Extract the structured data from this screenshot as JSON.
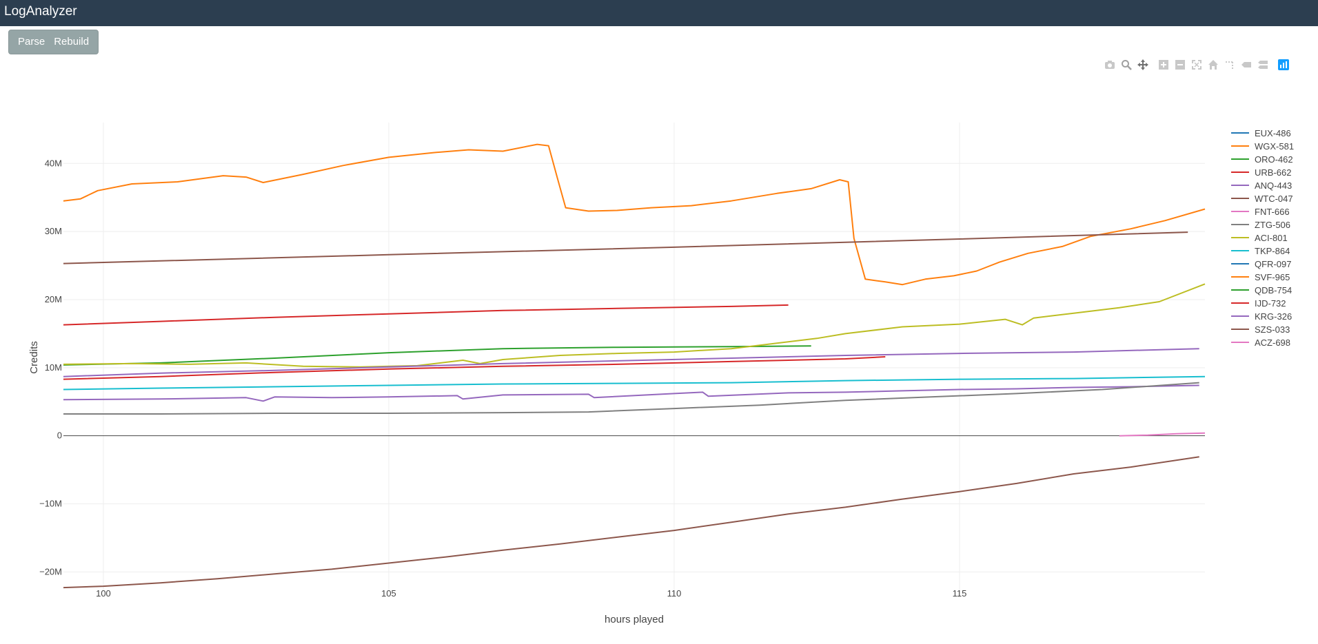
{
  "app": {
    "title": "LogAnalyzer"
  },
  "toolbar": {
    "parse_label": "Parse",
    "rebuild_label": "Rebuild"
  },
  "modebar": {
    "icons": [
      "camera-icon",
      "zoom-icon",
      "pan-icon",
      "zoom-in-icon",
      "zoom-out-icon",
      "autoscale-icon",
      "reset-axes-icon",
      "spike-lines-icon",
      "hover-closest-icon",
      "hover-compare-icon",
      "plotly-logo-icon"
    ]
  },
  "chart_data": {
    "type": "line",
    "xlabel": "hours played",
    "ylabel": "Credits",
    "xlim": [
      99.3,
      119.3
    ],
    "ylim": [
      -23000000,
      46000000
    ],
    "x_ticks": [
      100,
      105,
      110,
      115
    ],
    "x_tick_labels": [
      "100",
      "105",
      "110",
      "115"
    ],
    "y_ticks": [
      -20000000,
      -10000000,
      0,
      10000000,
      20000000,
      30000000,
      40000000
    ],
    "y_tick_labels": [
      "−20M",
      "−10M",
      "0",
      "10M",
      "20M",
      "30M",
      "40M"
    ],
    "grid": true,
    "legend_position": "right",
    "series": [
      {
        "name": "EUX-486",
        "color": "#1f77b4",
        "x": [],
        "y": []
      },
      {
        "name": "WGX-581",
        "color": "#ff7f0e",
        "x": [
          99.3,
          99.6,
          99.9,
          100.5,
          101.3,
          102.1,
          102.5,
          102.8,
          103.5,
          104.2,
          105.0,
          105.8,
          106.4,
          107.0,
          107.6,
          107.8,
          107.95,
          108.1,
          108.5,
          109.0,
          109.6,
          110.3,
          111.0,
          111.8,
          112.4,
          112.9,
          113.05,
          113.15,
          113.35,
          113.7,
          114.0,
          114.4,
          114.9,
          115.3,
          115.7,
          116.2,
          116.8,
          117.3,
          118.0,
          118.6,
          119.3
        ],
        "y": [
          34500000,
          34800000,
          36000000,
          37000000,
          37300000,
          38200000,
          38000000,
          37200000,
          38400000,
          39700000,
          40900000,
          41600000,
          42000000,
          41800000,
          42800000,
          42600000,
          38000000,
          33500000,
          33000000,
          33100000,
          33500000,
          33800000,
          34500000,
          35600000,
          36300000,
          37600000,
          37300000,
          29000000,
          23000000,
          22600000,
          22200000,
          23000000,
          23500000,
          24200000,
          25500000,
          26800000,
          27800000,
          29300000,
          30400000,
          31600000,
          33300000
        ]
      },
      {
        "name": "ORO-462",
        "color": "#2ca02c",
        "x": [
          99.3,
          101.0,
          103.0,
          105.0,
          107.0,
          109.0,
          111.0,
          112.4
        ],
        "y": [
          10400000,
          10700000,
          11400000,
          12200000,
          12800000,
          13000000,
          13100000,
          13200000
        ]
      },
      {
        "name": "URB-662",
        "color": "#d62728",
        "x": [
          99.3,
          101.0,
          103.0,
          105.0,
          107.0,
          109.0,
          111.0,
          112.0
        ],
        "y": [
          16300000,
          16800000,
          17400000,
          17900000,
          18400000,
          18700000,
          19000000,
          19200000
        ]
      },
      {
        "name": "ANQ-443",
        "color": "#9467bd",
        "x": [
          99.3,
          101.0,
          102.5,
          102.8,
          103.0,
          104.0,
          105.0,
          106.2,
          106.3,
          107.0,
          108.5,
          108.6,
          110.0,
          110.5,
          110.6,
          112.0,
          113.0,
          114.0,
          115.0,
          116.0,
          117.0,
          118.0,
          119.2
        ],
        "y": [
          5300000,
          5400000,
          5600000,
          5100000,
          5700000,
          5600000,
          5700000,
          5900000,
          5400000,
          6000000,
          6100000,
          5600000,
          6200000,
          6400000,
          5800000,
          6300000,
          6400000,
          6600000,
          6800000,
          6900000,
          7100000,
          7200000,
          7400000
        ]
      },
      {
        "name": "WTC-047",
        "color": "#8c564b",
        "x": [
          99.3,
          105.0,
          110.0,
          115.0,
          119.0
        ],
        "y": [
          25300000,
          26600000,
          27700000,
          28900000,
          29900000
        ]
      },
      {
        "name": "FNT-666",
        "color": "#e377c2",
        "x": [
          117.8,
          118.3,
          118.8,
          119.3
        ],
        "y": [
          0,
          100000,
          300000,
          400000
        ]
      },
      {
        "name": "ZTG-506",
        "color": "#7f7f7f",
        "x": [
          99.3,
          101.0,
          103.0,
          105.0,
          107.0,
          108.5,
          110.0,
          111.5,
          113.0,
          114.5,
          116.0,
          117.5,
          119.2
        ],
        "y": [
          3200000,
          3200000,
          3300000,
          3300000,
          3400000,
          3500000,
          4000000,
          4500000,
          5200000,
          5700000,
          6200000,
          6800000,
          7800000
        ]
      },
      {
        "name": "ACI-801",
        "color": "#bcbd22",
        "x": [
          99.3,
          100.5,
          101.5,
          102.5,
          103.5,
          104.5,
          105.5,
          106.3,
          106.6,
          107.0,
          108.0,
          109.0,
          110.0,
          111.0,
          112.0,
          112.5,
          113.0,
          114.0,
          115.0,
          115.8,
          116.1,
          116.3,
          117.0,
          117.8,
          118.5,
          119.3
        ],
        "y": [
          10500000,
          10600000,
          10500000,
          10700000,
          10200000,
          10100000,
          10300000,
          11100000,
          10600000,
          11200000,
          11800000,
          12100000,
          12300000,
          12800000,
          13800000,
          14300000,
          15000000,
          16000000,
          16400000,
          17100000,
          16300000,
          17300000,
          18000000,
          18800000,
          19700000,
          22300000
        ]
      },
      {
        "name": "TKP-864",
        "color": "#17becf",
        "x": [
          99.3,
          101.0,
          103.0,
          105.0,
          107.0,
          109.0,
          111.0,
          113.0,
          115.0,
          117.0,
          119.3
        ],
        "y": [
          6800000,
          7000000,
          7200000,
          7400000,
          7600000,
          7700000,
          7800000,
          8100000,
          8300000,
          8400000,
          8700000
        ]
      },
      {
        "name": "QFR-097",
        "color": "#1f77b4",
        "x": [],
        "y": []
      },
      {
        "name": "SVF-965",
        "color": "#ff7f0e",
        "x": [],
        "y": []
      },
      {
        "name": "QDB-754",
        "color": "#2ca02c",
        "x": [],
        "y": []
      },
      {
        "name": "IJD-732",
        "color": "#d62728",
        "x": [
          99.3,
          101.0,
          103.0,
          105.0,
          107.0,
          109.0,
          111.0,
          113.0,
          113.7
        ],
        "y": [
          8300000,
          8700000,
          9300000,
          9800000,
          10200000,
          10500000,
          10900000,
          11300000,
          11600000
        ]
      },
      {
        "name": "KRG-326",
        "color": "#9467bd",
        "x": [
          99.3,
          101.0,
          103.0,
          105.0,
          107.0,
          109.0,
          111.0,
          113.0,
          115.0,
          117.0,
          119.2
        ],
        "y": [
          8700000,
          9200000,
          9600000,
          10100000,
          10600000,
          11000000,
          11400000,
          11800000,
          12100000,
          12300000,
          12800000
        ]
      },
      {
        "name": "SZS-033",
        "color": "#8c564b",
        "x": [
          99.3,
          100.0,
          101.0,
          102.0,
          103.0,
          104.0,
          105.0,
          106.0,
          107.0,
          108.0,
          109.0,
          110.0,
          111.0,
          112.0,
          113.0,
          114.0,
          115.0,
          116.0,
          117.0,
          118.0,
          119.2
        ],
        "y": [
          -22300000,
          -22100000,
          -21600000,
          -21000000,
          -20300000,
          -19600000,
          -18700000,
          -17800000,
          -16800000,
          -15900000,
          -14900000,
          -13900000,
          -12700000,
          -11500000,
          -10500000,
          -9300000,
          -8200000,
          -7000000,
          -5600000,
          -4600000,
          -3100000
        ]
      },
      {
        "name": "ACZ-698",
        "color": "#e377c2",
        "x": [],
        "y": []
      }
    ],
    "zero_line": true
  }
}
